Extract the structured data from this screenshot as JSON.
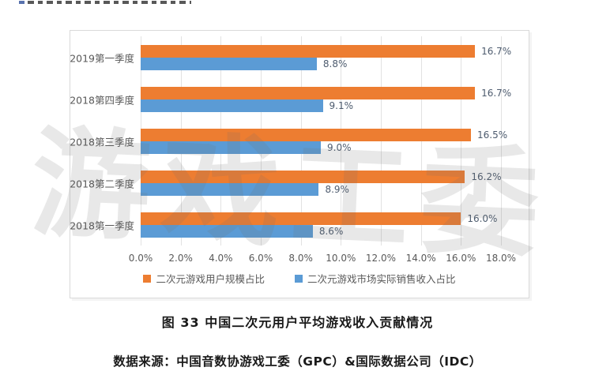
{
  "page": {
    "caption": "图 33  中国二次元用户平均游戏收入贡献情况",
    "source": "数据来源：中国音数协游戏工委（GPC）&国际数据公司（IDC）",
    "watermark": "游戏工委"
  },
  "chart_data": {
    "type": "bar",
    "orientation": "horizontal",
    "title": "",
    "categories": [
      "2019第一季度",
      "2018第四季度",
      "2018第三季度",
      "2018第二季度",
      "2018第一季度"
    ],
    "series": [
      {
        "name": "二次元游戏用户规模占比",
        "color": "#ED7D31",
        "values": [
          16.7,
          16.7,
          16.5,
          16.2,
          16.0
        ]
      },
      {
        "name": "二次元游戏市场实际销售收入占比",
        "color": "#5B9BD5",
        "values": [
          8.8,
          9.1,
          9.0,
          8.9,
          8.6
        ]
      }
    ],
    "value_label_format": "{v}%",
    "xlim": [
      0,
      18
    ],
    "x_ticks": [
      "0.0%",
      "2.0%",
      "4.0%",
      "6.0%",
      "8.0%",
      "10.0%",
      "12.0%",
      "14.0%",
      "16.0%",
      "18.0%"
    ],
    "grid": true,
    "legend_position": "bottom"
  }
}
